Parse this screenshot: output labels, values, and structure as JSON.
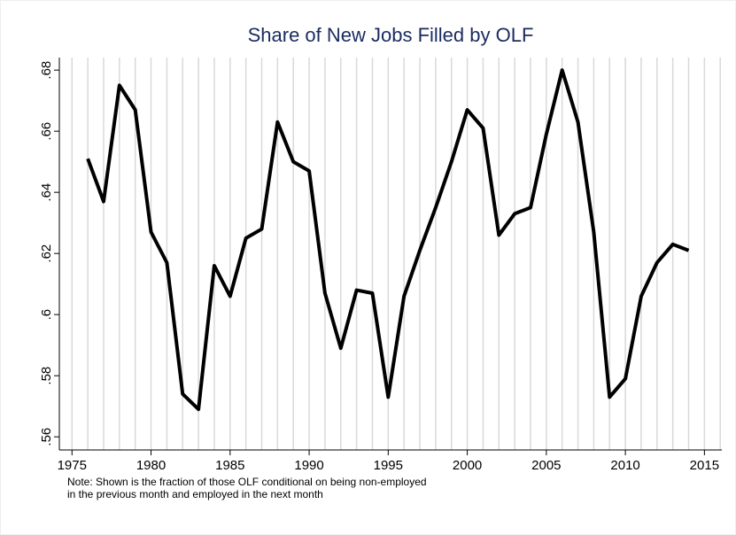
{
  "chart_data": {
    "type": "line",
    "title": "Share of New Jobs Filled by OLF",
    "note": [
      "Note: Shown is the fraction of those OLF conditional on being non-employed",
      "in the previous month and employed in the next month"
    ],
    "x": [
      1976,
      1977,
      1978,
      1979,
      1980,
      1981,
      1982,
      1983,
      1984,
      1985,
      1986,
      1987,
      1988,
      1989,
      1990,
      1991,
      1992,
      1993,
      1994,
      1995,
      1996,
      1997,
      1998,
      1999,
      2000,
      2001,
      2002,
      2003,
      2004,
      2005,
      2006,
      2007,
      2008,
      2009,
      2010,
      2011,
      2012,
      2013,
      2014
    ],
    "series": [
      {
        "color": "#000000",
        "values": [
          0.651,
          0.637,
          0.675,
          0.667,
          0.627,
          0.617,
          0.574,
          0.569,
          0.616,
          0.606,
          0.625,
          0.628,
          0.663,
          0.65,
          0.647,
          0.607,
          0.589,
          0.608,
          0.607,
          0.573,
          0.606,
          0.621,
          0.635,
          0.65,
          0.667,
          0.661,
          0.626,
          0.633,
          0.635,
          0.659,
          0.68,
          0.663,
          0.627,
          0.573,
          0.579,
          0.606,
          0.617,
          0.623,
          0.621
        ]
      }
    ],
    "xlim": [
      1974.2,
      2016.1
    ],
    "xticks": [
      1975,
      1980,
      1985,
      1990,
      1995,
      2000,
      2005,
      2010,
      2015
    ],
    "ylim": [
      0.5557,
      0.6841
    ],
    "yticks": [
      {
        "value": 0.56,
        "label": ".56"
      },
      {
        "value": 0.58,
        "label": ".58"
      },
      {
        "value": 0.6,
        "label": ".6"
      },
      {
        "value": 0.62,
        "label": ".62"
      },
      {
        "value": 0.64,
        "label": ".64"
      },
      {
        "value": 0.66,
        "label": ".66"
      },
      {
        "value": 0.68,
        "label": ".68"
      }
    ],
    "x_grid_step": 1,
    "title_color": "#1a2b5f"
  }
}
